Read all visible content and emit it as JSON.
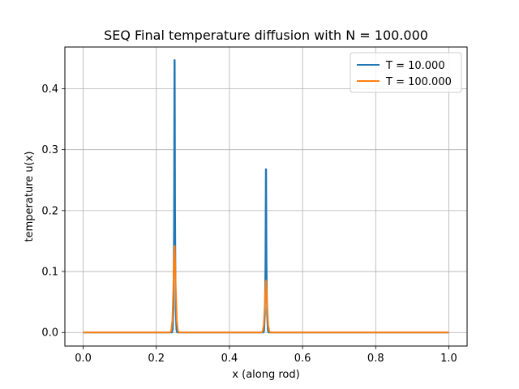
{
  "chart_data": {
    "type": "line",
    "title": "SEQ Final temperature diffusion with N = 100.000",
    "xlabel": "x (along rod)",
    "ylabel": "temperature u(x)",
    "xlim": [
      -0.05,
      1.05
    ],
    "ylim": [
      -0.0223,
      0.4685
    ],
    "xticks": [
      0.0,
      0.2,
      0.4,
      0.6,
      0.8,
      1.0
    ],
    "xtick_labels": [
      "0.0",
      "0.2",
      "0.4",
      "0.6",
      "0.8",
      "1.0"
    ],
    "yticks": [
      0.0,
      0.1,
      0.2,
      0.3,
      0.4
    ],
    "ytick_labels": [
      "0.0",
      "0.1",
      "0.2",
      "0.3",
      "0.4"
    ],
    "grid": true,
    "legend_position": "top-right",
    "series": [
      {
        "name": "T = 10.000",
        "color": "#1f77b4",
        "x": [
          0.0,
          0.243,
          0.245,
          0.247,
          0.2485,
          0.2495,
          0.2505,
          0.2515,
          0.253,
          0.255,
          0.257,
          0.493,
          0.495,
          0.497,
          0.4985,
          0.4995,
          0.5005,
          0.5015,
          0.503,
          0.505,
          0.507,
          1.0
        ],
        "y": [
          0.0,
          0.0,
          0.004,
          0.04,
          0.2,
          0.447,
          0.447,
          0.2,
          0.04,
          0.004,
          0.0,
          0.0,
          0.003,
          0.03,
          0.12,
          0.268,
          0.268,
          0.12,
          0.03,
          0.003,
          0.0,
          0.0
        ]
      },
      {
        "name": "T = 100.000",
        "color": "#ff7f0e",
        "x": [
          0.0,
          0.238,
          0.241,
          0.244,
          0.247,
          0.249,
          0.2495,
          0.2505,
          0.251,
          0.253,
          0.256,
          0.259,
          0.262,
          0.488,
          0.491,
          0.494,
          0.497,
          0.499,
          0.4995,
          0.5005,
          0.501,
          0.503,
          0.506,
          0.509,
          0.512,
          1.0
        ],
        "y": [
          0.0,
          0.0,
          0.003,
          0.02,
          0.08,
          0.13,
          0.142,
          0.142,
          0.13,
          0.08,
          0.02,
          0.003,
          0.0,
          0.0,
          0.002,
          0.012,
          0.048,
          0.078,
          0.085,
          0.085,
          0.078,
          0.048,
          0.012,
          0.002,
          0.0,
          0.0
        ]
      }
    ]
  }
}
